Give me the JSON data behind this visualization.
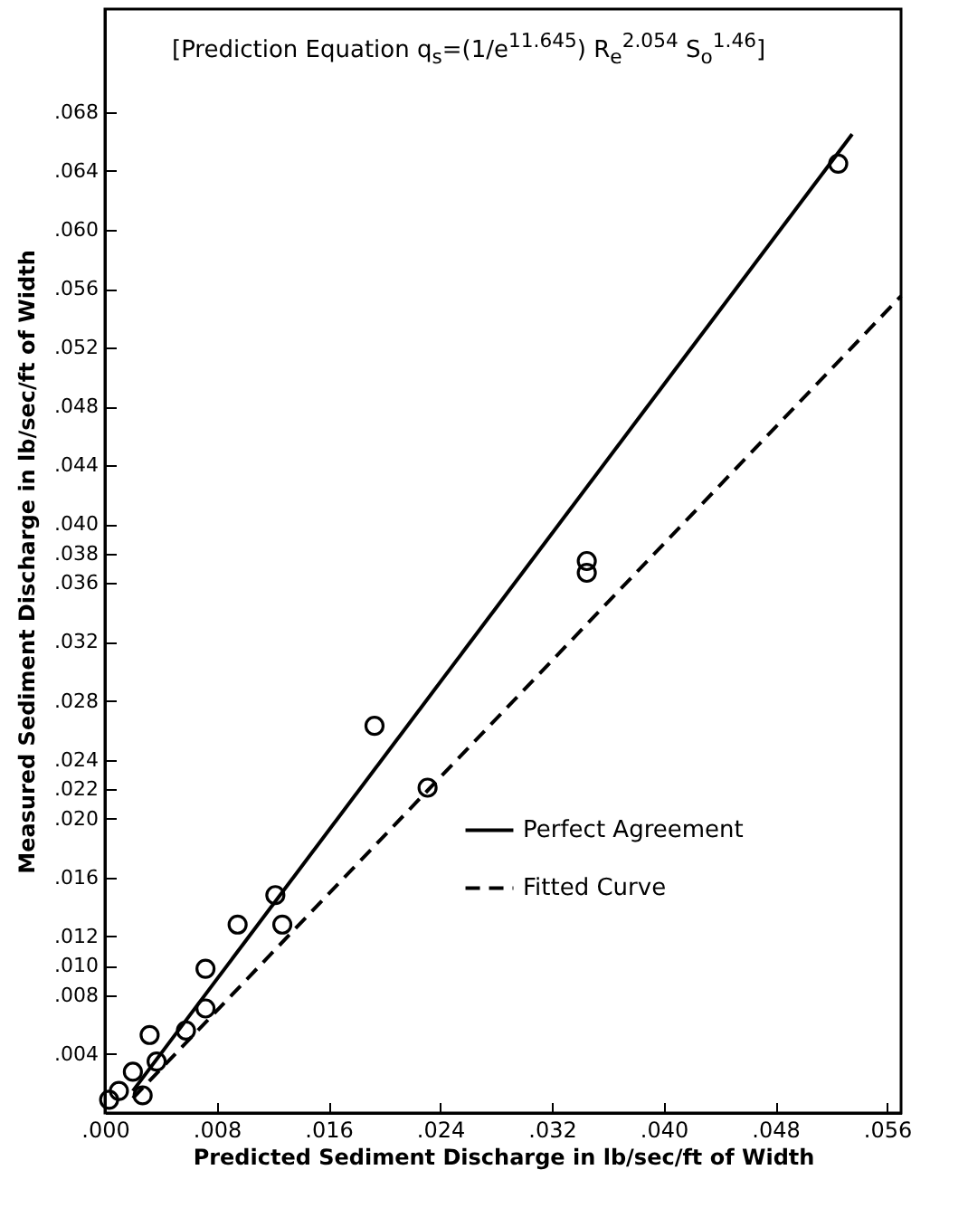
{
  "chart_data": {
    "type": "scatter",
    "xlabel": "Predicted Sediment Discharge in lb/sec/ft of Width",
    "ylabel": "Measured Sediment Discharge in lb/sec/ft of Width",
    "annotations": [
      "[Prediction Equation q$_{s}$=(1/e$^{11.645}$) R$_{e}$$^{2.054}$ S$_{o}$$^{1.46}$]"
    ],
    "xlim": [
      0,
      0.057
    ],
    "ylim": [
      0,
      0.075
    ],
    "xticks": [
      {
        "value": 0,
        "label": ".000"
      },
      {
        "value": 0.008,
        "label": ".008"
      },
      {
        "value": 0.016,
        "label": ".016"
      },
      {
        "value": 0.024,
        "label": ".024"
      },
      {
        "value": 0.032,
        "label": ".032"
      },
      {
        "value": 0.04,
        "label": ".040"
      },
      {
        "value": 0.048,
        "label": ".048"
      },
      {
        "value": 0.056,
        "label": ".056"
      }
    ],
    "yticks": [
      {
        "value": 0.004,
        "label": ".004"
      },
      {
        "value": 0.008,
        "label": ".008"
      },
      {
        "value": 0.01,
        "label": ".010"
      },
      {
        "value": 0.012,
        "label": ".012"
      },
      {
        "value": 0.016,
        "label": ".016"
      },
      {
        "value": 0.02,
        "label": ".020"
      },
      {
        "value": 0.022,
        "label": ".022"
      },
      {
        "value": 0.024,
        "label": ".024"
      },
      {
        "value": 0.028,
        "label": ".028"
      },
      {
        "value": 0.032,
        "label": ".032"
      },
      {
        "value": 0.036,
        "label": ".036"
      },
      {
        "value": 0.038,
        "label": ".038"
      },
      {
        "value": 0.04,
        "label": ".040"
      },
      {
        "value": 0.044,
        "label": ".044"
      },
      {
        "value": 0.048,
        "label": ".048"
      },
      {
        "value": 0.052,
        "label": ".052"
      },
      {
        "value": 0.056,
        "label": ".056"
      },
      {
        "value": 0.06,
        "label": ".060"
      },
      {
        "value": 0.064,
        "label": ".064"
      },
      {
        "value": 0.068,
        "label": ".068"
      }
    ],
    "grid": false,
    "legend": "bottom right",
    "series": [
      {
        "marker": "circle",
        "color": "#000000",
        "x": [
          0.0003,
          0.001,
          0.0027,
          0.002,
          0.0037,
          0.0032,
          0.0058,
          0.0072,
          0.0072,
          0.0095,
          0.0127,
          0.0122,
          0.0231,
          0.0193,
          0.0345,
          0.0345,
          0.0525
        ],
        "values": [
          0.0009,
          0.0015,
          0.0012,
          0.0028,
          0.0035,
          0.0053,
          0.0056,
          0.0071,
          0.0098,
          0.0128,
          0.0128,
          0.0148,
          0.0221,
          0.0263,
          0.0367,
          0.0375,
          0.0645
        ]
      },
      {
        "type": "line",
        "name": "Perfect Agreement",
        "color": "#000000",
        "line_style": "solid",
        "x": [
          0.002,
          0.0535
        ],
        "values": [
          0.0015,
          0.0665
        ]
      },
      {
        "type": "line",
        "name": "Fitted Curve",
        "color": "#000000",
        "line_style": "dashed",
        "x": [
          0.002,
          0.057
        ],
        "values": [
          0.001,
          0.0555
        ]
      }
    ]
  }
}
